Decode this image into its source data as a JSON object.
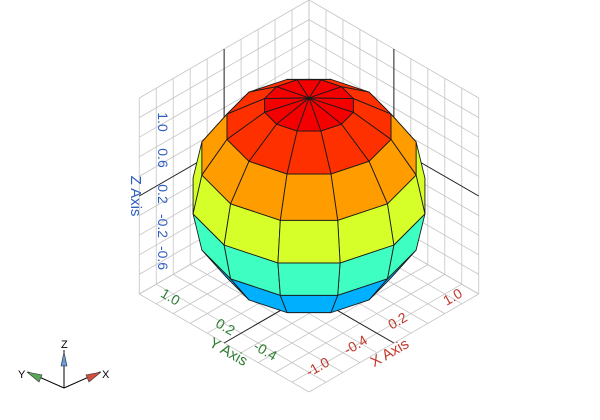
{
  "chart_data": {
    "type": "surface3d",
    "surface": "sphere",
    "colormap": "jet",
    "colormap_axis": "z",
    "mesh": {
      "latitude_bands": 8,
      "longitude_segments": 12
    },
    "axes": {
      "x": {
        "label": "X Axis",
        "ticks": [
          "-1.0",
          "-0.4",
          "0.2",
          "1.0"
        ],
        "color": "#c0392b"
      },
      "y": {
        "label": "Y Axis",
        "ticks": [
          "1.0",
          "0.2",
          "-0.4"
        ],
        "color": "#2e7d32"
      },
      "z": {
        "label": "Z Axis",
        "ticks": [
          "1.0",
          "0.6",
          "0.2",
          "-0.2",
          "-0.6"
        ],
        "color": "#2f5fbf"
      }
    },
    "grid": true
  },
  "triad": {
    "x_label": "X",
    "y_label": "Y",
    "z_label": "Z"
  }
}
